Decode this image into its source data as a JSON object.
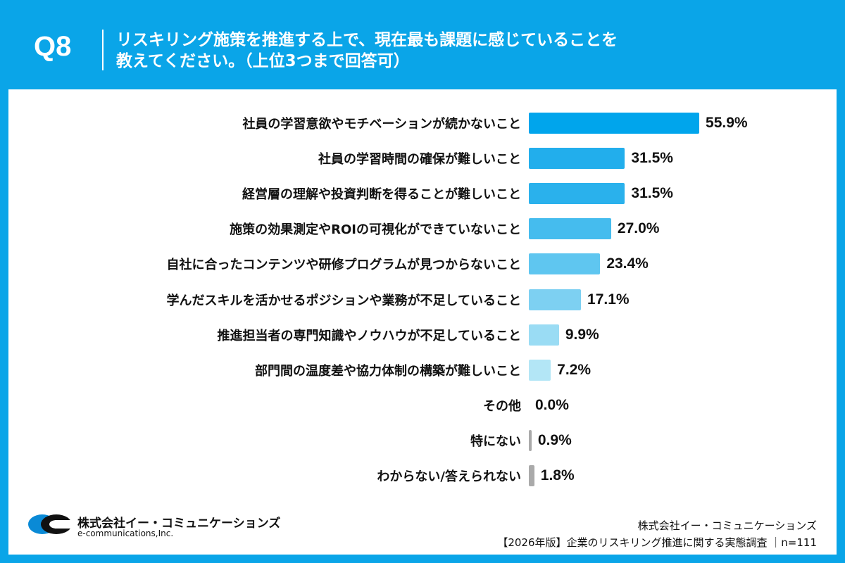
{
  "header": {
    "question_number": "Q8",
    "title_line1": "リスキリング施策を推進する上で、現在最も課題に感じていることを",
    "title_line2": "教えてください。（上位3つまで回答可）"
  },
  "chart_data": {
    "type": "bar",
    "orientation": "horizontal",
    "categories": [
      "社員の学習意欲やモチベーションが続かないこと",
      "社員の学習時間の確保が難しいこと",
      "経営層の理解や投資判断を得ることが難しいこと",
      "施策の効果測定やROIの可視化ができていないこと",
      "自社に合ったコンテンツや研修プログラムが見つからないこと",
      "学んだスキルを活かせるポジションや業務が不足していること",
      "推進担当者の専門知識やノウハウが不足していること",
      "部門間の温度差や協力体制の構築が難しいこと",
      "その他",
      "特にない",
      "わからない/答えられない"
    ],
    "values": [
      55.9,
      31.5,
      31.5,
      27.0,
      23.4,
      17.1,
      9.9,
      7.2,
      0.0,
      0.9,
      1.8
    ],
    "value_labels": [
      "55.9%",
      "31.5%",
      "31.5%",
      "27.0%",
      "23.4%",
      "17.1%",
      "9.9%",
      "7.2%",
      "0.0%",
      "0.9%",
      "1.8%"
    ],
    "colors": [
      "#00a5ec",
      "#22aeec",
      "#2ab1ec",
      "#45bcee",
      "#5fc6f0",
      "#7dd0f2",
      "#9adcf4",
      "#b3e6f6",
      "#aaaaaa",
      "#aaaaaa",
      "#aaaaaa"
    ],
    "unit": "%",
    "grid": false,
    "legend": "none"
  },
  "logo": {
    "name_ja": "株式会社イー・コミュニケーションズ",
    "name_en": "e-communications,Inc."
  },
  "footer": {
    "company": "株式会社イー・コミュニケーションズ",
    "survey": "【2026年版】企業のリスキリング推進に関する実態調査 ｜n=111"
  }
}
